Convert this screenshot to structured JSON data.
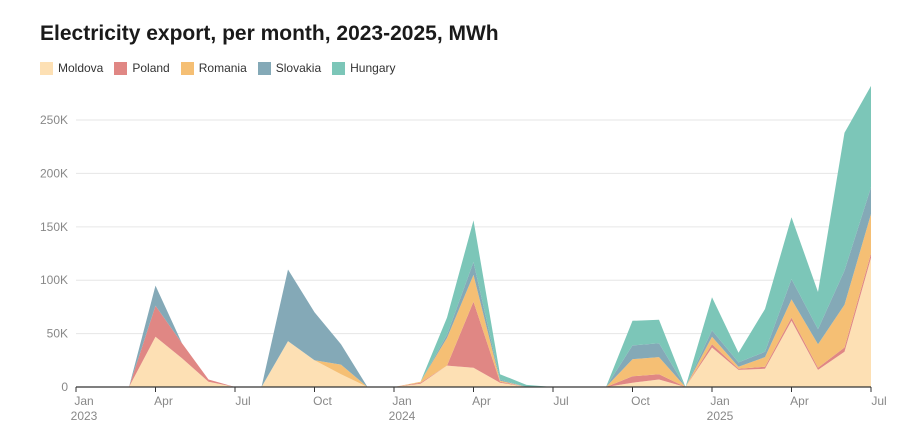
{
  "chart_data": {
    "type": "area",
    "stacked": true,
    "title": "Electricity export, per month, 2023-2025, MWh",
    "x": [
      "2023-01",
      "2023-02",
      "2023-03",
      "2023-04",
      "2023-05",
      "2023-06",
      "2023-07",
      "2023-08",
      "2023-09",
      "2023-10",
      "2023-11",
      "2023-12",
      "2024-01",
      "2024-02",
      "2024-03",
      "2024-04",
      "2024-05",
      "2024-06",
      "2024-07",
      "2024-08",
      "2024-09",
      "2024-10",
      "2024-11",
      "2024-12",
      "2025-01",
      "2025-02",
      "2025-03",
      "2025-04",
      "2025-05",
      "2025-06",
      "2025-07"
    ],
    "x_tick_labels": [
      {
        "x": "2023-01",
        "label": "Jan",
        "year": "2023"
      },
      {
        "x": "2023-04",
        "label": "Apr"
      },
      {
        "x": "2023-07",
        "label": "Jul"
      },
      {
        "x": "2023-10",
        "label": "Oct"
      },
      {
        "x": "2024-01",
        "label": "Jan",
        "year": "2024"
      },
      {
        "x": "2024-04",
        "label": "Apr"
      },
      {
        "x": "2024-07",
        "label": "Jul"
      },
      {
        "x": "2024-10",
        "label": "Oct"
      },
      {
        "x": "2025-01",
        "label": "Jan",
        "year": "2025"
      },
      {
        "x": "2025-04",
        "label": "Apr"
      },
      {
        "x": "2025-07",
        "label": "Jul"
      }
    ],
    "y_ticks": [
      {
        "value": 0,
        "label": "0"
      },
      {
        "value": 50000,
        "label": "50K"
      },
      {
        "value": 100000,
        "label": "100K"
      },
      {
        "value": 150000,
        "label": "150K"
      },
      {
        "value": 200000,
        "label": "200K"
      },
      {
        "value": 250000,
        "label": "250K"
      }
    ],
    "ylim": [
      0,
      280000
    ],
    "grid": true,
    "legend_position": "top-left",
    "series": [
      {
        "name": "Moldova",
        "color": "#fde0b4",
        "values": [
          0,
          0,
          0,
          47000,
          27000,
          5000,
          0,
          0,
          43000,
          25000,
          12000,
          0,
          0,
          3000,
          20000,
          18000,
          4000,
          0,
          0,
          0,
          0,
          4000,
          7000,
          0,
          37000,
          16000,
          17000,
          62000,
          16000,
          33000,
          121000
        ]
      },
      {
        "name": "Poland",
        "color": "#e08784",
        "values": [
          0,
          0,
          0,
          29000,
          14000,
          2000,
          0,
          0,
          0,
          0,
          0,
          0,
          0,
          1000,
          0,
          62000,
          1000,
          0,
          0,
          0,
          0,
          6000,
          5000,
          0,
          3000,
          1000,
          2000,
          3000,
          2000,
          4000,
          4000
        ]
      },
      {
        "name": "Romania",
        "color": "#f5bf74",
        "values": [
          0,
          0,
          0,
          0,
          0,
          0,
          0,
          0,
          0,
          0,
          9000,
          0,
          0,
          1000,
          26000,
          25000,
          1000,
          0,
          0,
          0,
          0,
          16000,
          16000,
          0,
          7000,
          2000,
          9000,
          17000,
          22000,
          40000,
          37000
        ]
      },
      {
        "name": "Slovakia",
        "color": "#84a9b7",
        "values": [
          0,
          0,
          0,
          19000,
          0,
          0,
          0,
          0,
          67000,
          45000,
          19000,
          0,
          0,
          0,
          3000,
          12000,
          1000,
          0,
          0,
          0,
          0,
          13000,
          13000,
          0,
          6000,
          4000,
          5000,
          19000,
          14000,
          32000,
          25000
        ]
      },
      {
        "name": "Hungary",
        "color": "#7cc6b8",
        "values": [
          0,
          0,
          0,
          0,
          0,
          0,
          0,
          0,
          0,
          0,
          0,
          0,
          0,
          0,
          16000,
          39000,
          5000,
          2000,
          0,
          0,
          0,
          23000,
          22000,
          0,
          31000,
          9000,
          40000,
          58000,
          35000,
          129000,
          95000
        ]
      }
    ]
  }
}
